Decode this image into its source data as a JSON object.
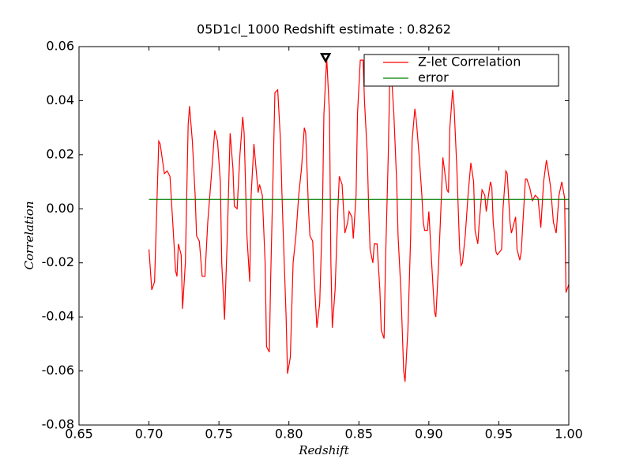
{
  "chart_data": {
    "type": "line",
    "title": "05D1cl_1000 Redshift estimate : 0.8262",
    "x_label": "Redshift",
    "y_label": "Correlation",
    "xlim": [
      0.65,
      1.0
    ],
    "ylim": [
      -0.08,
      0.06
    ],
    "xticks": [
      0.65,
      {
        "value": 0.7,
        "label": "0.70"
      },
      0.75,
      {
        "value": 0.8,
        "label": "0.80"
      },
      0.85,
      {
        "value": 0.9,
        "label": "0.90"
      },
      0.95,
      {
        "value": 1.0,
        "label": "1.00"
      }
    ],
    "yticks": [
      {
        "value": -0.08,
        "label": "-0.08"
      },
      -0.06,
      -0.04,
      -0.02,
      {
        "value": 0,
        "label": "0.00"
      },
      0.02,
      0.04,
      0.06
    ],
    "legend": "upper right",
    "series": [
      {
        "name": "Z-let Correlation",
        "color": "#ff0000",
        "x": [
          0.7,
          0.702,
          0.704,
          0.707,
          0.708,
          0.711,
          0.713,
          0.715,
          0.717,
          0.719,
          0.72,
          0.721,
          0.723,
          0.724,
          0.726,
          0.728,
          0.729,
          0.731,
          0.733,
          0.734,
          0.736,
          0.738,
          0.74,
          0.742,
          0.745,
          0.747,
          0.749,
          0.751,
          0.752,
          0.754,
          0.756,
          0.758,
          0.76,
          0.761,
          0.763,
          0.765,
          0.767,
          0.768,
          0.77,
          0.772,
          0.773,
          0.775,
          0.777,
          0.778,
          0.779,
          0.781,
          0.783,
          0.784,
          0.786,
          0.787,
          0.789,
          0.79,
          0.792,
          0.794,
          0.795,
          0.796,
          0.798,
          0.799,
          0.801,
          0.803,
          0.805,
          0.807,
          0.809,
          0.811,
          0.812,
          0.814,
          0.815,
          0.817,
          0.818,
          0.82,
          0.822,
          0.824,
          0.825,
          0.827,
          0.829,
          0.83,
          0.831,
          0.833,
          0.835,
          0.836,
          0.838,
          0.839,
          0.84,
          0.842,
          0.843,
          0.845,
          0.846,
          0.848,
          0.849,
          0.851,
          0.853,
          0.854,
          0.856,
          0.857,
          0.858,
          0.86,
          0.861,
          0.863,
          0.865,
          0.866,
          0.868,
          0.869,
          0.871,
          0.872,
          0.873,
          0.875,
          0.877,
          0.878,
          0.88,
          0.882,
          0.883,
          0.885,
          0.887,
          0.888,
          0.89,
          0.891,
          0.893,
          0.895,
          0.896,
          0.897,
          0.899,
          0.9,
          0.902,
          0.904,
          0.905,
          0.907,
          0.909,
          0.91,
          0.911,
          0.913,
          0.914,
          0.915,
          0.917,
          0.918,
          0.92,
          0.922,
          0.923,
          0.924,
          0.926,
          0.928,
          0.93,
          0.932,
          0.933,
          0.935,
          0.936,
          0.938,
          0.94,
          0.941,
          0.944,
          0.945,
          0.946,
          0.948,
          0.949,
          0.952,
          0.953,
          0.955,
          0.956,
          0.958,
          0.959,
          0.962,
          0.963,
          0.965,
          0.966,
          0.969,
          0.97,
          0.972,
          0.974,
          0.975,
          0.976,
          0.978,
          0.98,
          0.982,
          0.984,
          0.985,
          0.987,
          0.989,
          0.991,
          0.993,
          0.995,
          0.997,
          0.998,
          1.0
        ],
        "values": [
          -0.015,
          -0.03,
          -0.027,
          0.025,
          0.024,
          0.013,
          0.014,
          0.012,
          -0.005,
          -0.023,
          -0.025,
          -0.013,
          -0.017,
          -0.037,
          -0.02,
          0.031,
          0.038,
          0.025,
          0.005,
          -0.01,
          -0.012,
          -0.025,
          -0.025,
          -0.005,
          0.015,
          0.029,
          0.025,
          0.01,
          -0.02,
          -0.041,
          -0.01,
          0.028,
          0.015,
          0.001,
          0.0,
          0.02,
          0.034,
          0.028,
          -0.01,
          -0.027,
          0.005,
          0.024,
          0.012,
          0.006,
          0.009,
          0.005,
          -0.02,
          -0.051,
          -0.053,
          -0.025,
          0.02,
          0.043,
          0.044,
          0.025,
          0.006,
          -0.01,
          -0.04,
          -0.061,
          -0.055,
          -0.02,
          -0.01,
          0.005,
          0.015,
          0.03,
          0.028,
          0.0,
          -0.01,
          -0.012,
          -0.025,
          -0.044,
          -0.035,
          0.0,
          0.035,
          0.056,
          0.035,
          -0.02,
          -0.044,
          -0.03,
          0.0,
          0.012,
          0.009,
          0.0,
          -0.009,
          -0.005,
          -0.001,
          -0.003,
          -0.011,
          0.005,
          0.035,
          0.055,
          0.055,
          0.04,
          0.02,
          0.0,
          -0.015,
          -0.02,
          -0.013,
          -0.013,
          -0.03,
          -0.045,
          -0.048,
          -0.02,
          0.02,
          0.047,
          0.052,
          0.035,
          0.01,
          -0.01,
          -0.03,
          -0.06,
          -0.064,
          -0.045,
          -0.01,
          0.025,
          0.037,
          0.033,
          0.02,
          0.005,
          -0.005,
          -0.008,
          -0.008,
          -0.001,
          -0.02,
          -0.038,
          -0.04,
          -0.02,
          0.005,
          0.019,
          0.015,
          0.007,
          0.006,
          0.03,
          0.044,
          0.038,
          0.015,
          -0.015,
          -0.021,
          -0.02,
          -0.01,
          0.005,
          0.017,
          0.01,
          -0.008,
          -0.013,
          -0.005,
          0.007,
          0.005,
          -0.001,
          0.01,
          0.008,
          -0.005,
          -0.016,
          -0.017,
          -0.015,
          0.0,
          0.014,
          0.013,
          -0.005,
          -0.009,
          -0.003,
          -0.015,
          -0.019,
          -0.016,
          0.011,
          0.011,
          0.008,
          0.003,
          0.004,
          0.005,
          0.004,
          -0.007,
          0.01,
          0.018,
          0.015,
          0.008,
          -0.005,
          -0.009,
          0.005,
          0.01,
          0.004,
          -0.031,
          -0.028
        ]
      },
      {
        "name": "error",
        "color": "#008000",
        "x": [
          0.7,
          1.0
        ],
        "values": [
          0.0035,
          0.0035
        ]
      }
    ],
    "marker": {
      "x": 0.8262,
      "y": 0.0555
    }
  }
}
